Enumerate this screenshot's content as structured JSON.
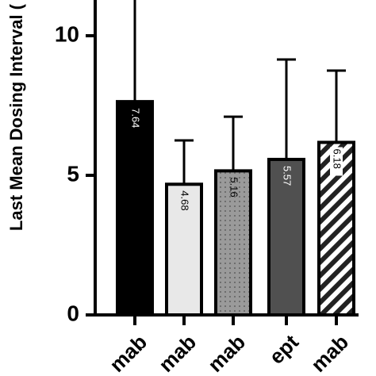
{
  "chart_data": {
    "type": "bar",
    "y_label": "Last Mean Dosing Interval (",
    "categories": [
      "mab",
      "mab",
      "mab",
      "ept",
      "mab"
    ],
    "values": [
      7.64,
      4.68,
      5.16,
      5.57,
      6.18
    ],
    "errors": [
      4.0,
      1.57,
      1.94,
      3.58,
      2.57
    ],
    "colors": [
      "#000000",
      "#e8e8e8",
      "#9a9a9a",
      "#505050",
      "#ffffff"
    ],
    "fills": [
      "solid",
      "solid",
      "dots",
      "solid",
      "stripes"
    ],
    "label_colors": [
      "#ffffff",
      "#000000",
      "#000000",
      "#ffffff",
      "#000000"
    ],
    "ylim": [
      0,
      11.28
    ],
    "yticks": [
      0,
      5,
      10
    ]
  }
}
